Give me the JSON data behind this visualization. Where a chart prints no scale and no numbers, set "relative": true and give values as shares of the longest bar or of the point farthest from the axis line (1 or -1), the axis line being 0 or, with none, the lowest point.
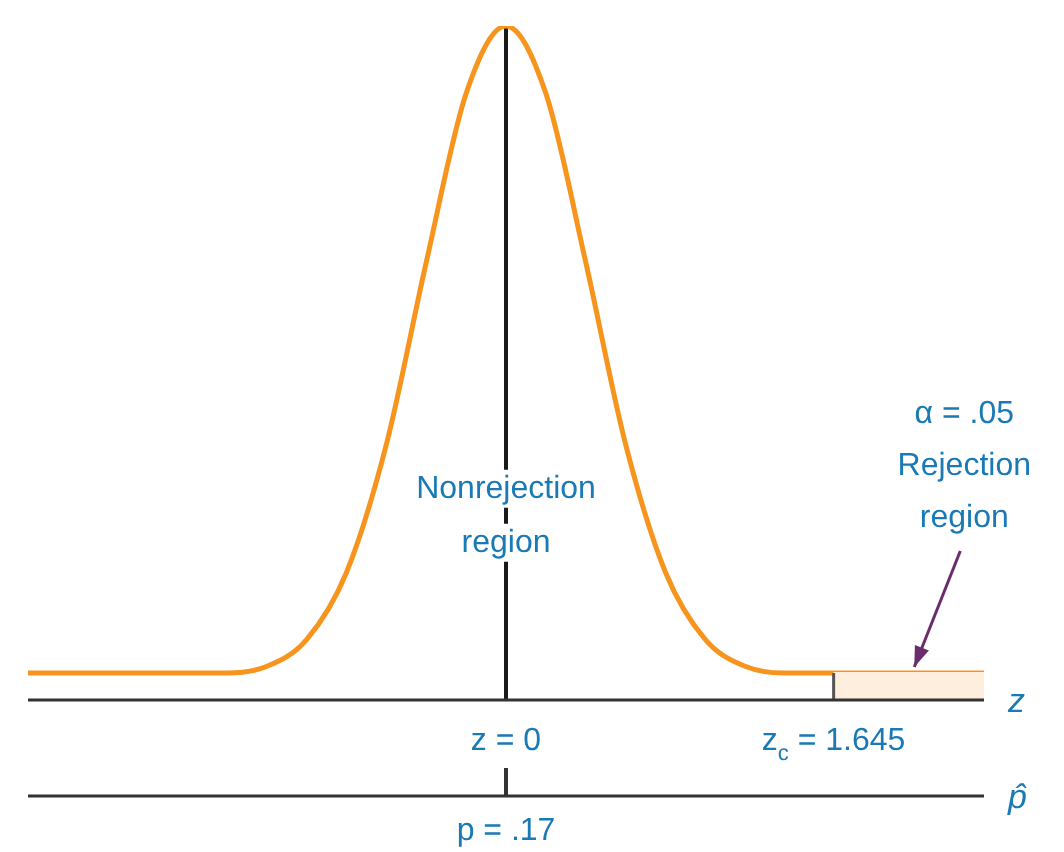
{
  "chart_data": {
    "type": "line",
    "relative": true,
    "x": [
      -2.4,
      -1.8,
      -1.6,
      -1.4,
      -1.2,
      -1.0,
      -0.8,
      -0.6,
      -0.4,
      -0.2,
      0,
      0.2,
      0.4,
      0.6,
      0.8,
      1.0,
      1.2,
      1.4,
      1.6,
      1.8,
      2.4
    ],
    "series": [
      {
        "type": "area",
        "color": "#fdeedd",
        "x": [
          1.645,
          2.4
        ],
        "values": [
          0.04,
          0.04
        ]
      },
      {
        "color": "#f7941d",
        "values": [
          0.04,
          0.04,
          0.04,
          0.04,
          0.05,
          0.09,
          0.19,
          0.38,
          0.65,
          0.9,
          1,
          0.9,
          0.65,
          0.38,
          0.19,
          0.09,
          0.05,
          0.04,
          0.04,
          0.04,
          0.04
        ]
      }
    ],
    "xlim": [
      -2.4,
      2.4
    ],
    "xticks": [
      {
        "value": 0,
        "label": "z = 0"
      },
      {
        "value": 1.645,
        "label": "z$_{c}$ = 1.645"
      }
    ],
    "xlabel": "z",
    "ref_lines": [
      {
        "axis": "x",
        "value": 0,
        "color": "#1a1a1a"
      }
    ],
    "annotations": [
      "Nonrejection\nregion",
      {
        "text": "α = .05\nRejection\nregion",
        "x": 2.05,
        "y": 0.04
      },
      "p = .17",
      "p̂"
    ],
    "marker": "none",
    "line_style": "solid",
    "legend": false
  }
}
